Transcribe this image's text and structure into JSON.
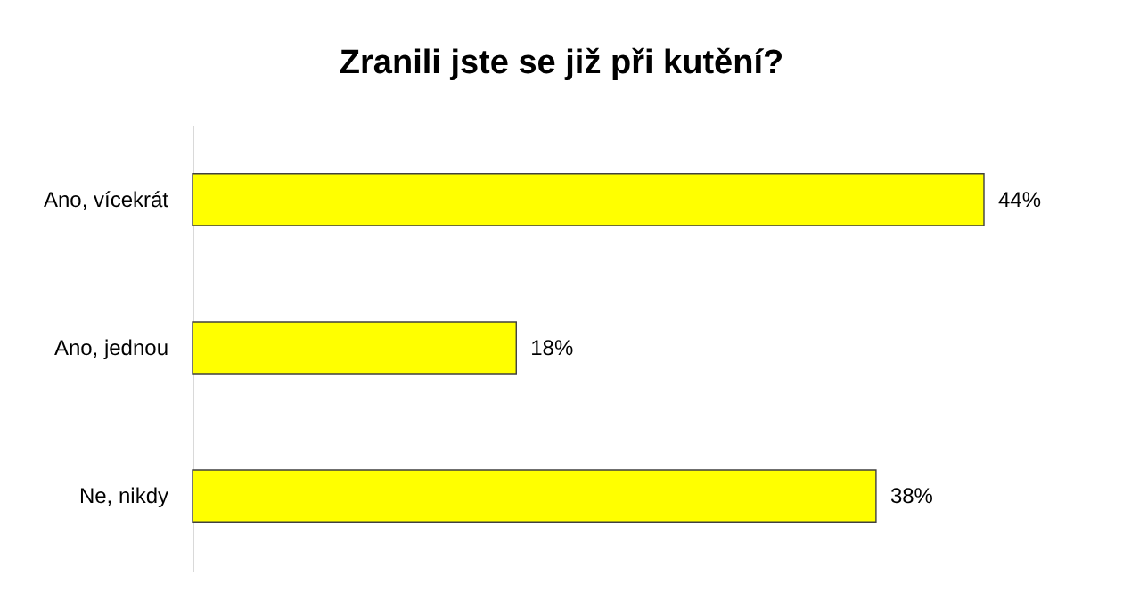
{
  "chart_data": {
    "type": "bar",
    "orientation": "horizontal",
    "title": "Zranili jste se již při kutění?",
    "categories": [
      "Ano, vícekrát",
      "Ano, jednou",
      "Ne, nikdy"
    ],
    "values": [
      44,
      18,
      38
    ],
    "value_labels": [
      "44%",
      "18%",
      "38%"
    ],
    "color": "#ffff00"
  }
}
